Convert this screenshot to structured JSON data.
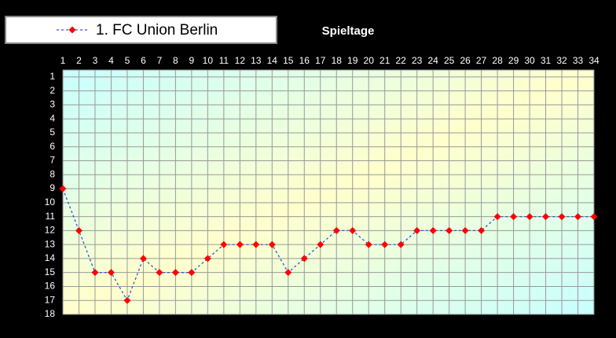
{
  "chart_data": {
    "type": "line",
    "title": "Spieltage",
    "x": [
      1,
      2,
      3,
      4,
      5,
      6,
      7,
      8,
      9,
      10,
      11,
      12,
      13,
      14,
      15,
      16,
      17,
      18,
      19,
      20,
      21,
      22,
      23,
      24,
      25,
      26,
      27,
      28,
      29,
      30,
      31,
      32,
      33,
      34
    ],
    "series": [
      {
        "name": "1. FC Union Berlin",
        "color": "#2b57e0",
        "marker_color": "#ff0000",
        "values": [
          9,
          12,
          15,
          15,
          17,
          14,
          15,
          15,
          15,
          14,
          13,
          13,
          13,
          13,
          15,
          14,
          13,
          12,
          12,
          13,
          13,
          13,
          12,
          12,
          12,
          12,
          12,
          11,
          11,
          11,
          11,
          11,
          11,
          11
        ]
      }
    ],
    "xlim": [
      1,
      34
    ],
    "xticks": [
      1,
      2,
      3,
      4,
      5,
      6,
      7,
      8,
      9,
      10,
      11,
      12,
      13,
      14,
      15,
      16,
      17,
      18,
      19,
      20,
      21,
      22,
      23,
      24,
      25,
      26,
      27,
      28,
      29,
      30,
      31,
      32,
      33,
      34
    ],
    "ylim": [
      0.5,
      18
    ],
    "yticks": [
      1,
      2,
      3,
      4,
      5,
      6,
      7,
      8,
      9,
      10,
      11,
      12,
      13,
      14,
      15,
      16,
      17,
      18
    ],
    "y_inverted": true,
    "grid": true,
    "legend": "top-left"
  }
}
